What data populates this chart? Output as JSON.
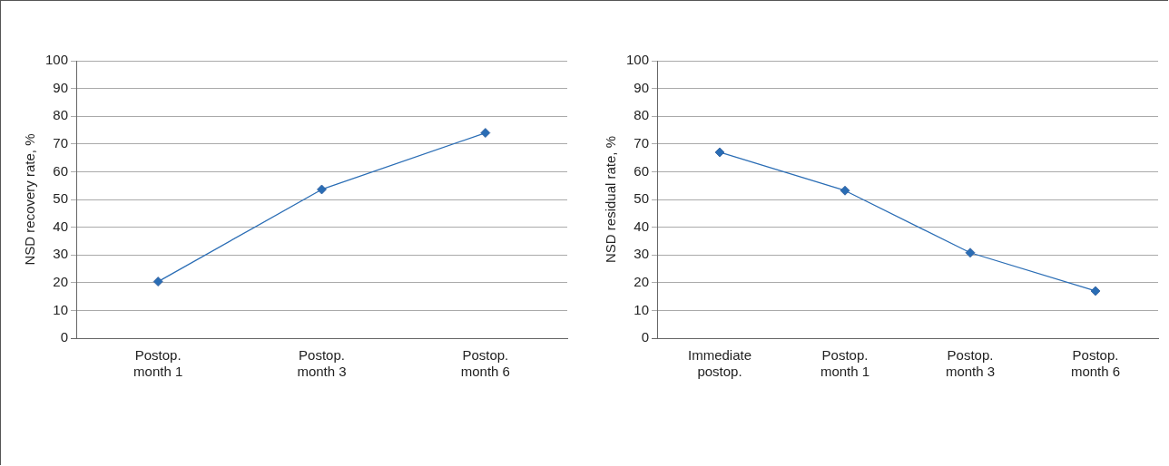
{
  "chart_data": [
    {
      "type": "line",
      "ylabel": "NSD recovery rate, %",
      "categories": [
        "Postop. month 1",
        "Postop. month 3",
        "Postop. month 6"
      ],
      "series": [
        {
          "color": "#2a6db5",
          "values": [
            20.4,
            53.6,
            74
          ]
        }
      ],
      "ylim": [
        0,
        100
      ],
      "yticks": [
        0,
        10,
        20,
        30,
        40,
        50,
        60,
        70,
        80,
        90,
        100
      ],
      "grid": "y",
      "marker": "diamond",
      "line_style": "solid"
    },
    {
      "type": "line",
      "ylabel": "NSD residual rate, %",
      "categories": [
        "Immediate postop.",
        "Postop. month 1",
        "Postop. month 3",
        "Postop. month 6"
      ],
      "series": [
        {
          "color": "#2a6db5",
          "values": [
            67,
            53.2,
            30.8,
            17
          ]
        }
      ],
      "ylim": [
        0,
        100
      ],
      "yticks": [
        0,
        10,
        20,
        30,
        40,
        50,
        60,
        70,
        80,
        90,
        100
      ],
      "grid": "y",
      "marker": "diamond",
      "line_style": "solid"
    }
  ]
}
